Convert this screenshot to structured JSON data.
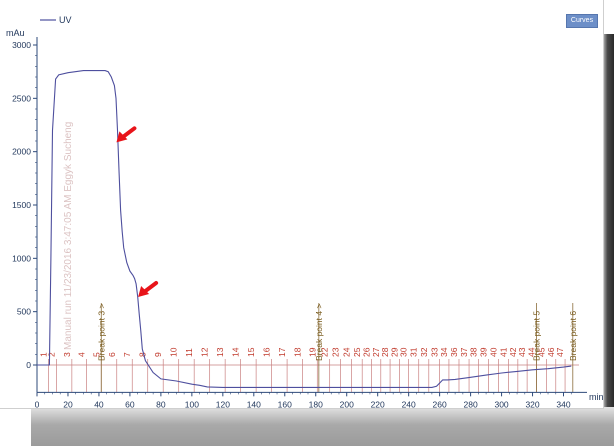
{
  "toolbar": {
    "curves_label": "Curves"
  },
  "chart_data": {
    "type": "line",
    "legend": "UV",
    "ylabel": "mAu",
    "xlabel": "min",
    "xlim": [
      0,
      350
    ],
    "ylim": [
      -200,
      3000
    ],
    "x_ticks": [
      0,
      20,
      40,
      60,
      80,
      100,
      120,
      140,
      160,
      180,
      200,
      220,
      240,
      260,
      280,
      300,
      320,
      340
    ],
    "y_ticks": [
      0,
      500,
      1000,
      1500,
      2000,
      2500,
      3000
    ],
    "series": [
      {
        "name": "UV",
        "color": "#4e4f9e",
        "x": [
          0,
          4,
          6,
          8,
          9,
          10,
          12,
          14,
          20,
          30,
          40,
          44,
          46,
          48,
          50,
          51,
          52,
          53,
          54,
          55,
          56,
          58,
          60,
          62,
          63,
          64,
          65,
          66,
          67,
          68,
          70,
          75,
          80,
          90,
          100,
          105,
          110,
          120,
          140,
          160,
          180,
          200,
          220,
          240,
          250,
          255,
          258,
          260,
          262,
          265,
          270,
          280,
          290,
          300,
          310,
          320,
          330,
          340,
          345
        ],
        "y": [
          0,
          0,
          0,
          0,
          1000,
          2200,
          2680,
          2720,
          2740,
          2760,
          2760,
          2760,
          2750,
          2700,
          2620,
          2500,
          2200,
          1800,
          1450,
          1250,
          1100,
          960,
          880,
          840,
          810,
          760,
          640,
          480,
          320,
          150,
          40,
          -70,
          -130,
          -150,
          -180,
          -190,
          -205,
          -210,
          -210,
          -210,
          -210,
          -210,
          -210,
          -210,
          -210,
          -210,
          -200,
          -170,
          -140,
          -140,
          -135,
          -115,
          -95,
          -75,
          -60,
          -45,
          -35,
          -20,
          -10
        ]
      }
    ],
    "fraction_markers": [
      {
        "label": "1",
        "x": 7.5
      },
      {
        "label": "2",
        "x": 12.5
      },
      {
        "label": "3",
        "x": 22.5
      },
      {
        "label": "4",
        "x": 32
      },
      {
        "label": "5",
        "x": 41.5
      },
      {
        "label": "6",
        "x": 51.5
      },
      {
        "label": "7",
        "x": 61.5
      },
      {
        "label": "8",
        "x": 71.5
      },
      {
        "label": "9",
        "x": 81.5
      },
      {
        "label": "10",
        "x": 91.5
      },
      {
        "label": "11",
        "x": 101.5
      },
      {
        "label": "12",
        "x": 111.5
      },
      {
        "label": "13",
        "x": 121.5
      },
      {
        "label": "14",
        "x": 131.5
      },
      {
        "label": "15",
        "x": 141.5
      },
      {
        "label": "16",
        "x": 151.5
      },
      {
        "label": "17",
        "x": 161.5
      },
      {
        "label": "18",
        "x": 171.5
      },
      {
        "label": "19",
        "x": 181
      },
      {
        "label": "22",
        "x": 189
      },
      {
        "label": "23",
        "x": 196
      },
      {
        "label": "24",
        "x": 203
      },
      {
        "label": "25",
        "x": 210
      },
      {
        "label": "26",
        "x": 216
      },
      {
        "label": "27",
        "x": 222
      },
      {
        "label": "28",
        "x": 228
      },
      {
        "label": "29",
        "x": 234
      },
      {
        "label": "30",
        "x": 240
      },
      {
        "label": "31",
        "x": 246.5
      },
      {
        "label": "32",
        "x": 253
      },
      {
        "label": "33",
        "x": 260
      },
      {
        "label": "34",
        "x": 266
      },
      {
        "label": "36",
        "x": 272.5
      },
      {
        "label": "37",
        "x": 279
      },
      {
        "label": "38",
        "x": 285
      },
      {
        "label": "39",
        "x": 291.5
      },
      {
        "label": "40",
        "x": 298
      },
      {
        "label": "41",
        "x": 304.5
      },
      {
        "label": "42",
        "x": 310.5
      },
      {
        "label": "43",
        "x": 316.5
      },
      {
        "label": "44",
        "x": 322.5
      },
      {
        "label": "45",
        "x": 329
      },
      {
        "label": "46",
        "x": 335
      },
      {
        "label": "47",
        "x": 341
      }
    ],
    "breakpoints": [
      {
        "label": "Break point 3 >",
        "x": 41.5
      },
      {
        "label": "Break point 4 >",
        "x": 182
      },
      {
        "label": "Break point 5",
        "x": 322.5
      },
      {
        "label": "Break point 6",
        "x": 346
      }
    ],
    "watermark_text": "Manual run 11/23/2016 3:47:05 AM Eggyk Sucheng",
    "annotations": [
      {
        "type": "arrow",
        "color": "#e8141a",
        "at_x": 50,
        "at_y": 2050
      },
      {
        "type": "arrow",
        "color": "#e8141a",
        "at_x": 64,
        "at_y": 600
      }
    ]
  }
}
